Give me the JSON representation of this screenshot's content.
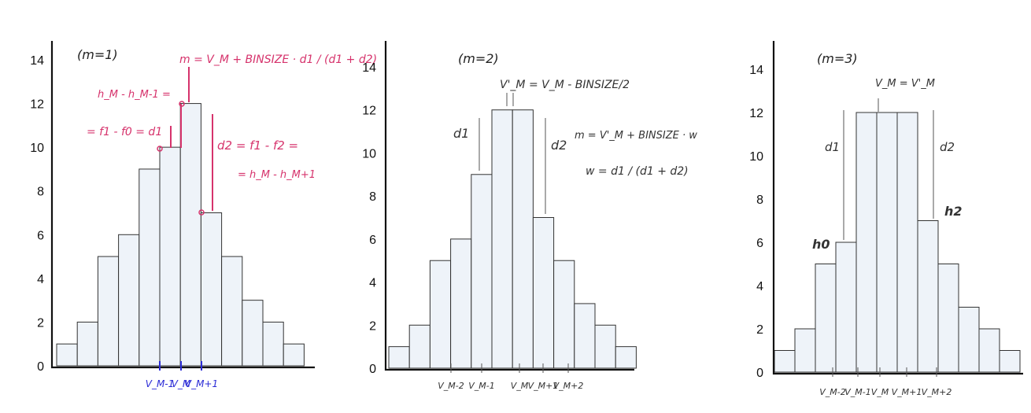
{
  "chart_data": [
    {
      "type": "bar",
      "values": [
        1,
        2,
        5,
        6,
        9,
        10,
        12,
        7,
        5,
        3,
        2,
        1
      ],
      "ylim": [
        0,
        14
      ],
      "yticks": [
        0,
        2,
        4,
        6,
        8,
        10,
        12,
        14
      ],
      "annotations": {
        "mode_label": "(m=1)",
        "formula": "m = V_M + BINSIZE · d1 / (d1 + d2)",
        "d1_line1": "h_M - h_M-1 =",
        "d1_line2": "= f1 - f0 = d1",
        "d2_line1": "d2 = f1 - f2 =",
        "d2_line2": "= h_M - h_M+1",
        "x_labels": [
          "V_M-1",
          "V_M",
          "V_M+1"
        ]
      }
    },
    {
      "type": "bar",
      "values": [
        1,
        2,
        5,
        6,
        9,
        12,
        12,
        7,
        5,
        3,
        2,
        1
      ],
      "ylim": [
        0,
        14
      ],
      "yticks": [
        0,
        2,
        4,
        6,
        8,
        10,
        12,
        14
      ],
      "annotations": {
        "mode_label": "(m=2)",
        "vm_prime": "V'_M = V_M - BINSIZE/2",
        "formula1": "m = V'_M + BINSIZE · w",
        "formula2": "w = d1 / (d1 + d2)",
        "d1": "d1",
        "d2": "d2",
        "x_labels": [
          "V_M-2",
          "V_M-1",
          "V_M",
          "V_M+1",
          "V_M+2"
        ]
      }
    },
    {
      "type": "bar",
      "values": [
        1,
        2,
        5,
        6,
        12,
        12,
        12,
        7,
        5,
        3,
        2,
        1
      ],
      "ylim": [
        0,
        14
      ],
      "yticks": [
        0,
        2,
        4,
        6,
        8,
        10,
        12,
        14
      ],
      "annotations": {
        "mode_label": "(m=3)",
        "vm_prime": "V_M = V'_M",
        "d1": "d1",
        "d2": "d2",
        "h0": "h0",
        "h2": "h2",
        "x_labels": [
          "V_M-2",
          "V_M-1",
          "V_M",
          "V_M+1",
          "V_M+2"
        ]
      }
    }
  ],
  "colors": {
    "bar_fill": "#eef3f9",
    "bar_stroke": "#333333",
    "pink_annotation": "#d6336c",
    "blue_annotation": "#2b2bd6"
  }
}
